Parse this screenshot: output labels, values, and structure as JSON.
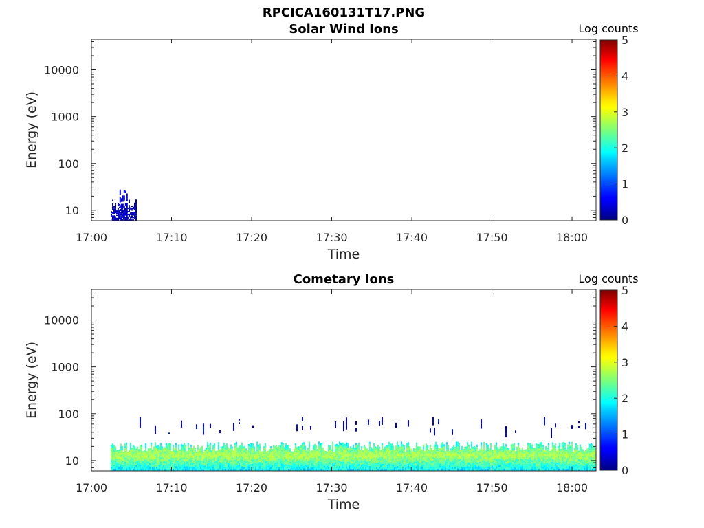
{
  "figure_title": "RPCICA160131T17.PNG",
  "colorbar_label": "Log counts",
  "colorbar_ticks": [
    "0",
    "1",
    "2",
    "3",
    "4",
    "5"
  ],
  "colormap": "jet",
  "chart_data": [
    {
      "type": "heatmap",
      "title": "Solar Wind Ions",
      "xlabel": "Time",
      "ylabel": "Energy (eV)",
      "xticks": [
        "17:00",
        "17:10",
        "17:20",
        "17:30",
        "17:40",
        "17:50",
        "18:00"
      ],
      "yticks": [
        "10",
        "100",
        "1000",
        "10000"
      ],
      "yscale": "log",
      "xlim": [
        "17:00",
        "18:03"
      ],
      "ylim": [
        6,
        45000
      ],
      "clim": [
        0,
        5
      ],
      "activity": [
        {
          "t_start": "17:02.4",
          "t_end": "17:05.5",
          "energy_min": 6,
          "energy_max": 15,
          "log_counts": [
            0.1,
            0.5
          ]
        },
        {
          "t_start": "17:03.5",
          "t_end": "17:04.5",
          "energy_min": 6,
          "energy_max": 25,
          "log_counts": [
            0.1,
            0.5
          ]
        }
      ]
    },
    {
      "type": "heatmap",
      "title": "Cometary Ions",
      "xlabel": "Time",
      "ylabel": "Energy (eV)",
      "xticks": [
        "17:00",
        "17:10",
        "17:20",
        "17:30",
        "17:40",
        "17:50",
        "18:00"
      ],
      "yticks": [
        "10",
        "100",
        "1000",
        "10000"
      ],
      "yscale": "log",
      "xlim": [
        "17:00",
        "18:03"
      ],
      "ylim": [
        6,
        45000
      ],
      "clim": [
        0,
        5
      ],
      "activity": [
        {
          "t_start": "17:02.4",
          "t_end": "18:03",
          "energy_min": 6,
          "energy_max": 22,
          "log_counts": [
            0.5,
            2.8
          ],
          "peak_energy": 13
        },
        {
          "t_start": "17:02.4",
          "t_end": "18:03",
          "energy_min": 30,
          "energy_max": 85,
          "log_counts": [
            0.2,
            0.8
          ],
          "note": "sparse"
        }
      ]
    }
  ]
}
